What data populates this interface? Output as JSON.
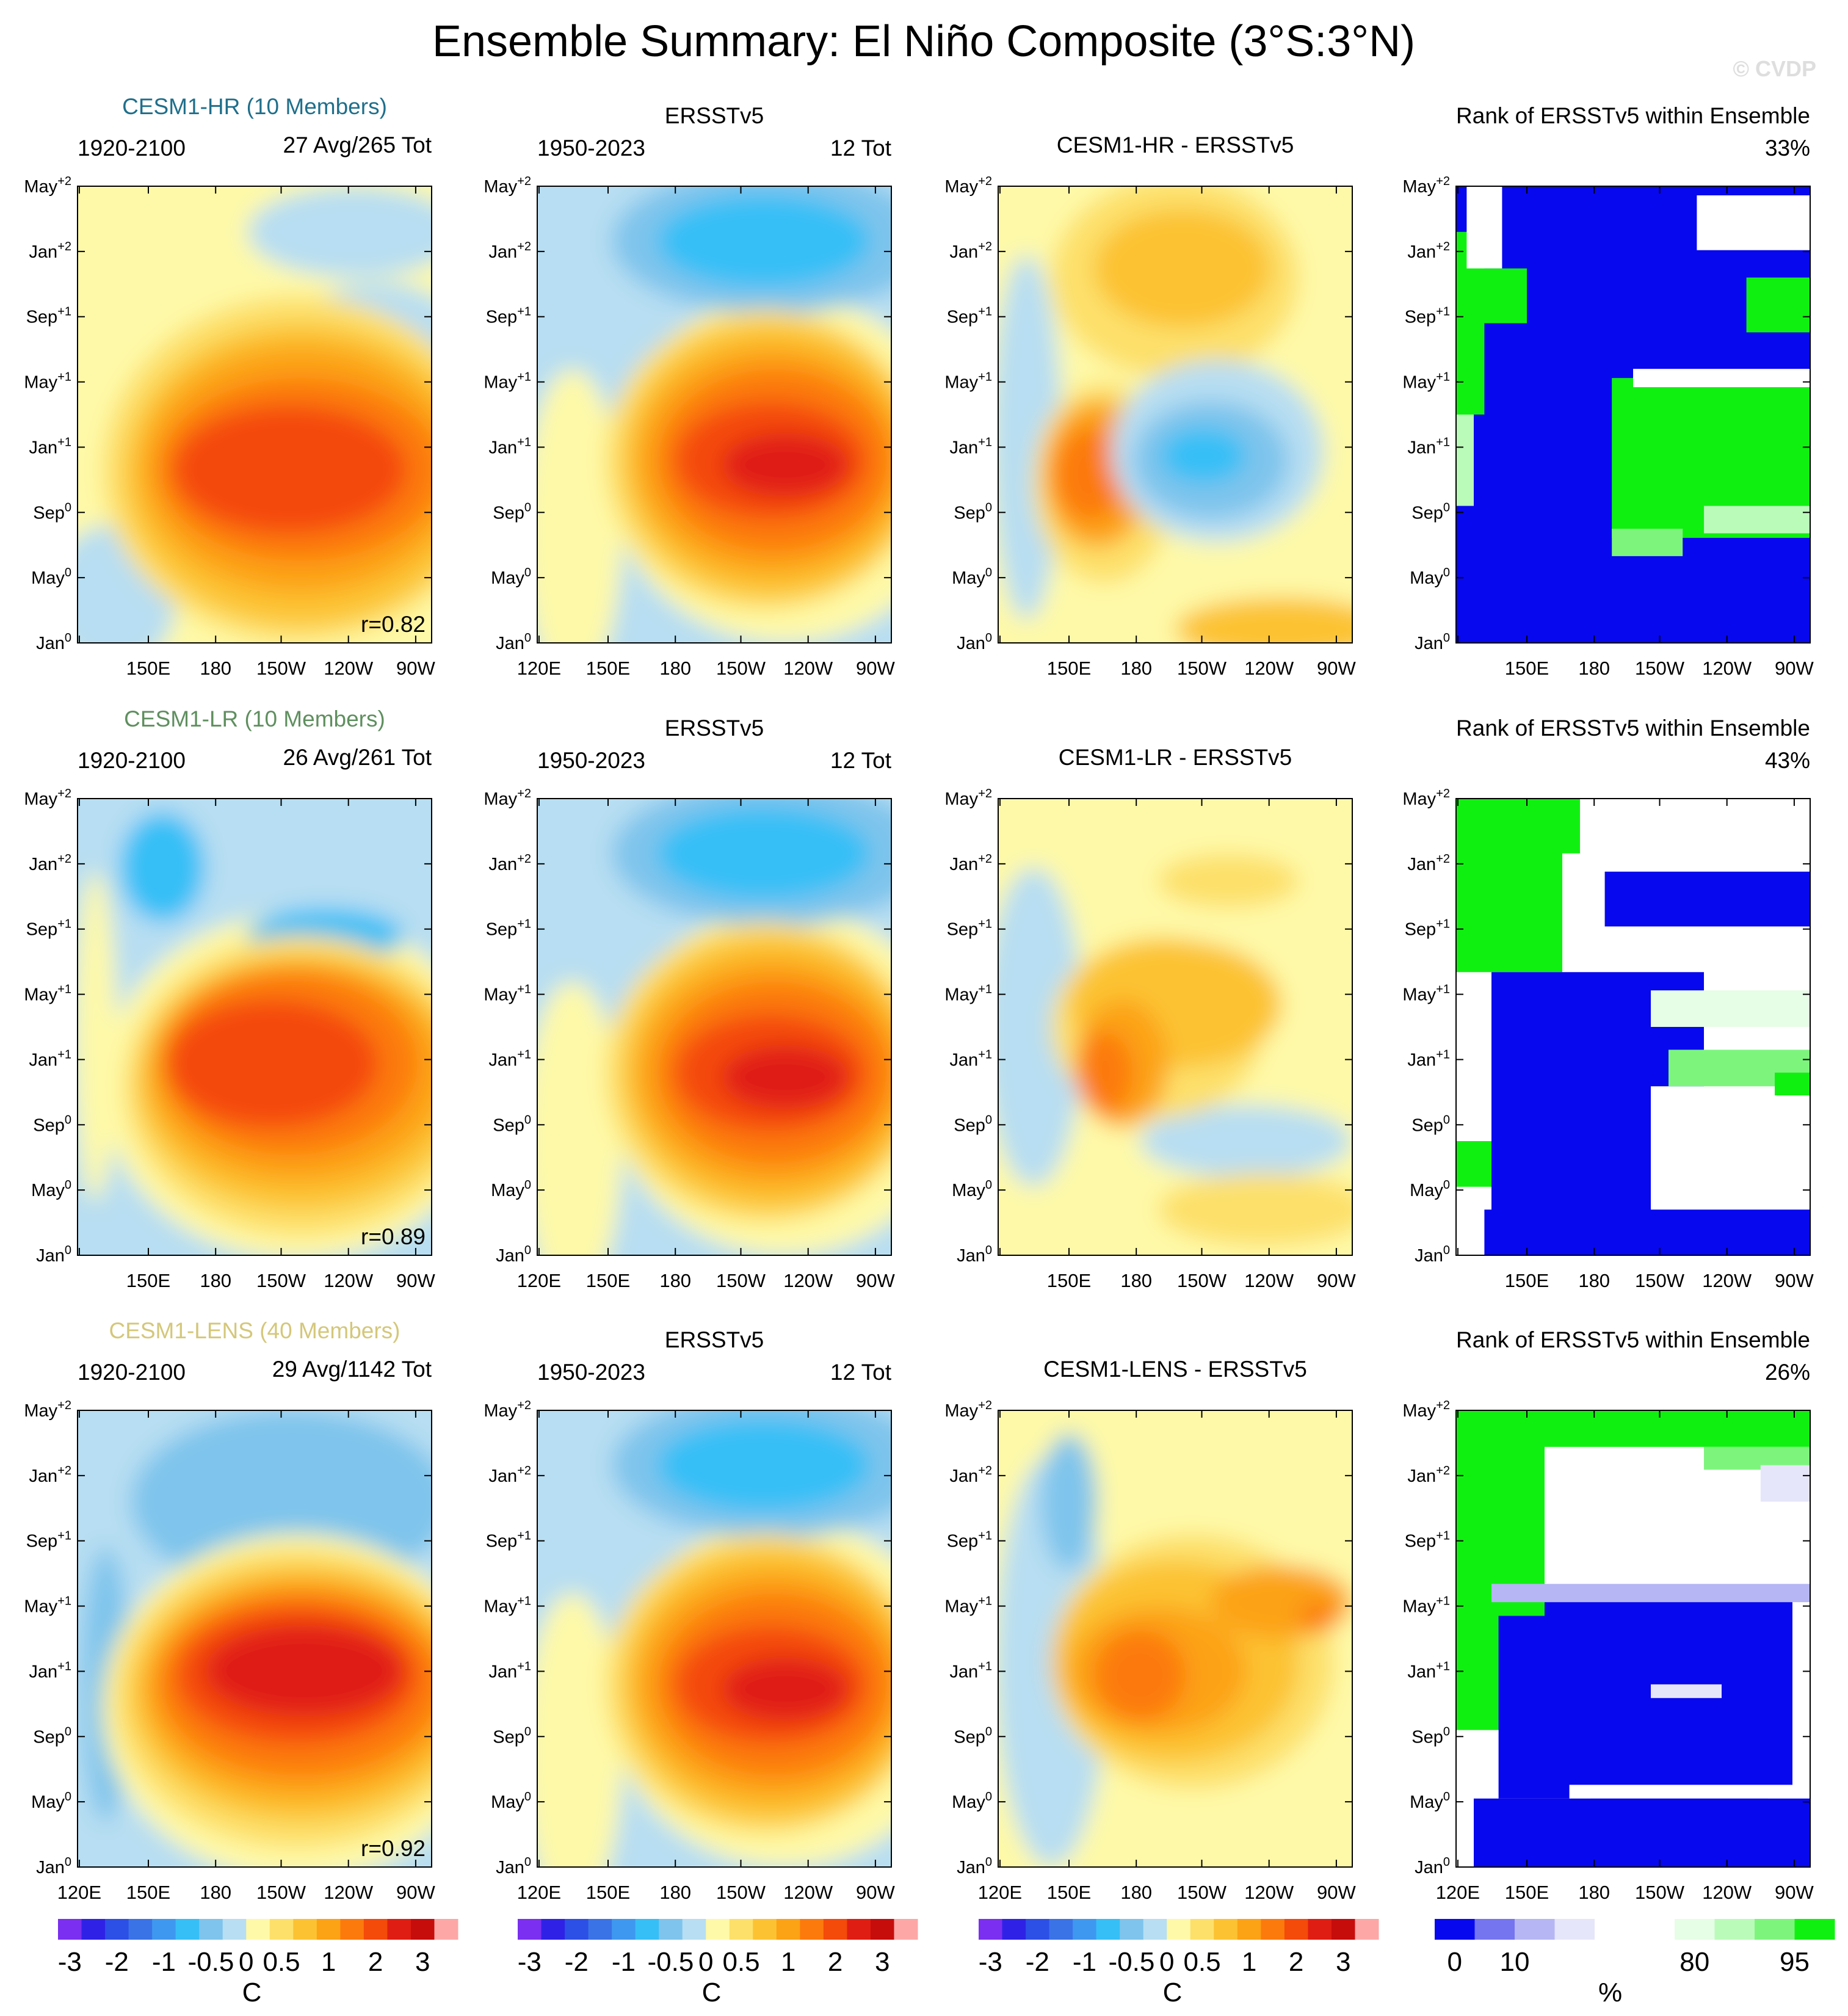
{
  "title": "Ensemble Summary: El Niño Composite (3°S:3°N)",
  "watermark": "© CVDP",
  "xticks_pattern": [
    "120E",
    "150E",
    "180",
    "150W",
    "120W",
    "90W"
  ],
  "yticks": [
    {
      "m": "Jan",
      "s": "0"
    },
    {
      "m": "May",
      "s": "0"
    },
    {
      "m": "Sep",
      "s": "0"
    },
    {
      "m": "Jan",
      "s": "+1"
    },
    {
      "m": "May",
      "s": "+1"
    },
    {
      "m": "Sep",
      "s": "+1"
    },
    {
      "m": "Jan",
      "s": "+2"
    },
    {
      "m": "May",
      "s": "+2"
    }
  ],
  "rows": [
    {
      "model": "CESM1-HR (10 Members)",
      "model_color": "#1f6f8b",
      "years": "1920-2100",
      "count": "27 Avg/265 Tot",
      "r": "r=0.82",
      "obs": "ERSSTv5",
      "obs_years": "1950-2023",
      "obs_count": "12 Tot",
      "diff": "CESM1-HR - ERSSTv5",
      "rank_title": "Rank of ERSSTv5 within Ensemble",
      "rank_pct": "33%",
      "xticks": [
        "150E",
        "180",
        "150W",
        "120W",
        "90W"
      ],
      "obs_xticks": [
        "120E",
        "150E",
        "180",
        "150W",
        "120W",
        "90W"
      ],
      "diff_xticks": [
        "150E",
        "180",
        "150W",
        "120W",
        "90W"
      ],
      "rank_xticks": [
        "150E",
        "180",
        "150W",
        "120W",
        "90W"
      ]
    },
    {
      "model": "CESM1-LR (10 Members)",
      "model_color": "#5f8f5f",
      "years": "1920-2100",
      "count": "26 Avg/261 Tot",
      "r": "r=0.89",
      "obs": "ERSSTv5",
      "obs_years": "1950-2023",
      "obs_count": "12 Tot",
      "diff": "CESM1-LR - ERSSTv5",
      "rank_title": "Rank of ERSSTv5 within Ensemble",
      "rank_pct": "43%",
      "xticks": [
        "150E",
        "180",
        "150W",
        "120W",
        "90W"
      ],
      "obs_xticks": [
        "120E",
        "150E",
        "180",
        "150W",
        "120W",
        "90W"
      ],
      "diff_xticks": [
        "150E",
        "180",
        "150W",
        "120W",
        "90W"
      ],
      "rank_xticks": [
        "150E",
        "180",
        "150W",
        "120W",
        "90W"
      ]
    },
    {
      "model": "CESM1-LENS (40 Members)",
      "model_color": "#d4c77a",
      "years": "1920-2100",
      "count": "29 Avg/1142 Tot",
      "r": "r=0.92",
      "obs": "ERSSTv5",
      "obs_years": "1950-2023",
      "obs_count": "12 Tot",
      "diff": "CESM1-LENS - ERSSTv5",
      "rank_title": "Rank of ERSSTv5 within Ensemble",
      "rank_pct": "26%",
      "xticks": [
        "120E",
        "150E",
        "180",
        "150W",
        "120W",
        "90W"
      ],
      "obs_xticks": [
        "120E",
        "150E",
        "180",
        "150W",
        "120W",
        "90W"
      ],
      "diff_xticks": [
        "120E",
        "150E",
        "180",
        "150W",
        "120W",
        "90W"
      ],
      "rank_xticks": [
        "120E",
        "150E",
        "180",
        "150W",
        "120W",
        "90W"
      ]
    }
  ],
  "colorbar_temp": {
    "colors": [
      "#7b2ff0",
      "#2f22e6",
      "#2c4fe6",
      "#3a73e6",
      "#3f98ef",
      "#36bff6",
      "#7ec4ec",
      "#b7def2",
      "#fef9a8",
      "#fde06a",
      "#fcc232",
      "#fca215",
      "#fc7a0c",
      "#f44a0a",
      "#e01d12",
      "#c70c0c",
      "#fda7a7"
    ],
    "labels": [
      "-3",
      "-2",
      "-1",
      "-0.5",
      "0",
      "0.5",
      "1",
      "2",
      "3"
    ],
    "unit": "C"
  },
  "colorbar_rank": {
    "colors": [
      "#0808ee",
      "#7575f0",
      "#b6b6f4",
      "#e6e6fa",
      "#ffffff",
      "#ffffff",
      "#e6fde6",
      "#bafbba",
      "#7df57d",
      "#10f010"
    ],
    "labels": [
      "0",
      "10",
      "80",
      "95"
    ],
    "unit": "%"
  },
  "chart_data": {
    "type": "heatmap",
    "title": "Ensemble Summary: El Niño Composite (3°S:3°N)",
    "x_axis": "longitude (120E–80W)",
    "y_axis": "month (Jan0 – May+2)",
    "panels": [
      {
        "row": "CESM1-HR",
        "kind": "model composite",
        "units": "C",
        "peak": 2,
        "peak_near": "150W–120W, ~Dec0",
        "pattern_correlation": 0.82
      },
      {
        "row": "CESM1-HR",
        "kind": "ERSSTv5 composite",
        "units": "C",
        "peak": 2,
        "min": -1,
        "min_near": "150W, ~Jan+2"
      },
      {
        "row": "CESM1-HR",
        "kind": "difference",
        "units": "C",
        "max": 1,
        "min": -1
      },
      {
        "row": "CESM1-HR",
        "kind": "rank",
        "units": "%",
        "rank_percent": 33
      },
      {
        "row": "CESM1-LR",
        "kind": "model composite",
        "units": "C",
        "peak": 2,
        "pattern_correlation": 0.89
      },
      {
        "row": "CESM1-LR",
        "kind": "difference",
        "units": "C",
        "max": 1,
        "min": -0.5
      },
      {
        "row": "CESM1-LR",
        "kind": "rank",
        "units": "%",
        "rank_percent": 43
      },
      {
        "row": "CESM1-LENS",
        "kind": "model composite",
        "units": "C",
        "peak": 3,
        "pattern_correlation": 0.92
      },
      {
        "row": "CESM1-LENS",
        "kind": "difference",
        "units": "C",
        "max": 1,
        "min": -1
      },
      {
        "row": "CESM1-LENS",
        "kind": "rank",
        "units": "%",
        "rank_percent": 26
      }
    ],
    "contour_levels_C": [
      -3,
      -2,
      -1,
      -0.5,
      0,
      0.5,
      1,
      2,
      3
    ],
    "rank_levels_pct": [
      0,
      10,
      80,
      95
    ]
  }
}
